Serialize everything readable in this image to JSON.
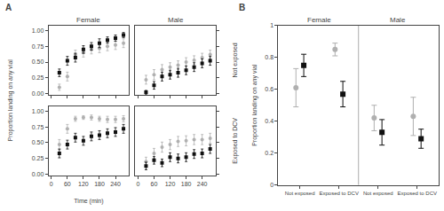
{
  "chart_data": [
    {
      "type": "scatter",
      "title": "Female",
      "ylabel": "Proportion landing on any vial",
      "annotations": [
        {
          "text": "A"
        }
      ],
      "x": [
        30,
        60,
        90,
        120,
        150,
        180,
        210,
        240,
        270
      ],
      "series": [
        {
          "color": "#b0b0b0",
          "marker": "circle",
          "values": [
            0.1,
            0.27,
            0.62,
            0.65,
            0.7,
            0.72,
            0.75,
            0.77,
            0.8
          ],
          "errors": [
            0.05,
            0.07,
            0.07,
            0.07,
            0.07,
            0.07,
            0.07,
            0.07,
            0.07
          ]
        },
        {
          "color": "#111111",
          "marker": "square",
          "values": [
            0.33,
            0.52,
            0.57,
            0.7,
            0.75,
            0.8,
            0.85,
            0.88,
            0.93
          ],
          "errors": [
            0.06,
            0.07,
            0.07,
            0.06,
            0.06,
            0.07,
            0.05,
            0.05,
            0.04
          ]
        }
      ],
      "xlim": [
        -10,
        290
      ],
      "xticks": [
        0,
        60,
        120,
        180,
        240
      ],
      "ylim": [
        -0.02,
        1.08
      ],
      "yticks": [
        {
          "value": 0,
          "label": "0.00"
        },
        0.25,
        {
          "value": 0.5,
          "label": "0.50"
        },
        0.75,
        {
          "value": 1,
          "label": "1.00"
        }
      ],
      "grid": false,
      "tick_labels": "y"
    },
    {
      "type": "scatter",
      "title": "Male",
      "ylabel": "Not exposed",
      "x": [
        30,
        60,
        90,
        120,
        150,
        180,
        210,
        240,
        270
      ],
      "series": [
        {
          "color": "#b0b0b0",
          "marker": "circle",
          "values": [
            0.22,
            0.3,
            0.38,
            0.42,
            0.45,
            0.5,
            0.53,
            0.57,
            0.62
          ],
          "errors": [
            0.07,
            0.08,
            0.08,
            0.07,
            0.07,
            0.07,
            0.07,
            0.07,
            0.07
          ]
        },
        {
          "color": "#111111",
          "marker": "square",
          "values": [
            0.02,
            0.13,
            0.27,
            0.3,
            0.33,
            0.37,
            0.42,
            0.48,
            0.52
          ],
          "errors": [
            0.03,
            0.06,
            0.07,
            0.07,
            0.07,
            0.07,
            0.07,
            0.07,
            0.07
          ]
        }
      ],
      "xlim": [
        -10,
        290
      ],
      "xticks": [
        0,
        60,
        120,
        180,
        240
      ],
      "ylim": [
        -0.02,
        1.08
      ],
      "yticks": [
        {
          "value": 0,
          "label": "0.00"
        },
        0.25,
        {
          "value": 0.5,
          "label": "0.50"
        },
        0.75,
        {
          "value": 1,
          "label": "1.00"
        }
      ],
      "grid": false,
      "tick_labels": false
    },
    {
      "type": "scatter",
      "xlabel": "Time (min)",
      "x": [
        30,
        60,
        90,
        120,
        150,
        180,
        210,
        240,
        270
      ],
      "series": [
        {
          "color": "#b0b0b0",
          "marker": "circle",
          "values": [
            0.47,
            0.72,
            0.88,
            0.9,
            0.9,
            0.88,
            0.87,
            0.87,
            0.88
          ],
          "errors": [
            0.08,
            0.07,
            0.04,
            0.03,
            0.04,
            0.04,
            0.05,
            0.05,
            0.05
          ]
        },
        {
          "color": "#111111",
          "marker": "square",
          "values": [
            0.33,
            0.47,
            0.58,
            0.53,
            0.6,
            0.62,
            0.65,
            0.67,
            0.72
          ],
          "errors": [
            0.07,
            0.07,
            0.07,
            0.07,
            0.07,
            0.07,
            0.07,
            0.07,
            0.07
          ]
        }
      ],
      "xlim": [
        -10,
        290
      ],
      "xticks": [
        0,
        60,
        120,
        180,
        240
      ],
      "ylim": [
        -0.02,
        1.08
      ],
      "yticks": [
        {
          "value": 0,
          "label": "0.00"
        },
        0.25,
        {
          "value": 0.5,
          "label": "0.50"
        },
        0.75,
        {
          "value": 1,
          "label": "1.00"
        }
      ],
      "grid": false
    },
    {
      "type": "scatter",
      "ylabel": "Exposed to DCV",
      "x": [
        30,
        60,
        90,
        120,
        150,
        180,
        210,
        240,
        270
      ],
      "series": [
        {
          "color": "#b0b0b0",
          "marker": "circle",
          "values": [
            0.2,
            0.33,
            0.43,
            0.47,
            0.52,
            0.53,
            0.55,
            0.55,
            0.57
          ],
          "errors": [
            0.07,
            0.08,
            0.08,
            0.08,
            0.08,
            0.08,
            0.08,
            0.08,
            0.08
          ]
        },
        {
          "color": "#111111",
          "marker": "square",
          "values": [
            0.13,
            0.22,
            0.18,
            0.27,
            0.25,
            0.27,
            0.32,
            0.33,
            0.4
          ],
          "errors": [
            0.06,
            0.06,
            0.06,
            0.07,
            0.07,
            0.07,
            0.07,
            0.07,
            0.07
          ]
        }
      ],
      "xlim": [
        -10,
        290
      ],
      "xticks": [
        0,
        60,
        120,
        180,
        240
      ],
      "ylim": [
        -0.02,
        1.08
      ],
      "yticks": [
        {
          "value": 0,
          "label": "0.00"
        },
        0.25,
        {
          "value": 0.5,
          "label": "0.50"
        },
        0.75,
        {
          "value": 1,
          "label": "1.00"
        }
      ],
      "grid": false,
      "tick_labels": "x"
    },
    {
      "type": "scatter",
      "ylabel": "Proportion landing on any vial",
      "annotations": [
        {
          "text": "B"
        },
        {
          "text": "Female"
        },
        {
          "text": "Male"
        }
      ],
      "categories": [
        "Not exposed",
        "Exposed to DCV",
        "Not exposed",
        "Exposed to DCV"
      ],
      "series": [
        {
          "color": "#b0b0b0",
          "marker": "circle",
          "values": [
            0.61,
            0.85,
            0.42,
            0.43
          ],
          "error_minus": [
            0.12,
            0.04,
            0.08,
            0.12
          ],
          "error_plus": [
            0.12,
            0.04,
            0.08,
            0.12
          ]
        },
        {
          "color": "#111111",
          "marker": "square",
          "values": [
            0.75,
            0.57,
            0.33,
            0.29
          ],
          "error_minus": [
            0.07,
            0.08,
            0.08,
            0.06
          ],
          "error_plus": [
            0.07,
            0.08,
            0.08,
            0.06
          ]
        }
      ],
      "ylim": [
        0,
        1
      ],
      "yticks": [
        0,
        0.2,
        0.4,
        0.6,
        0.8,
        1
      ],
      "grid": false
    }
  ]
}
